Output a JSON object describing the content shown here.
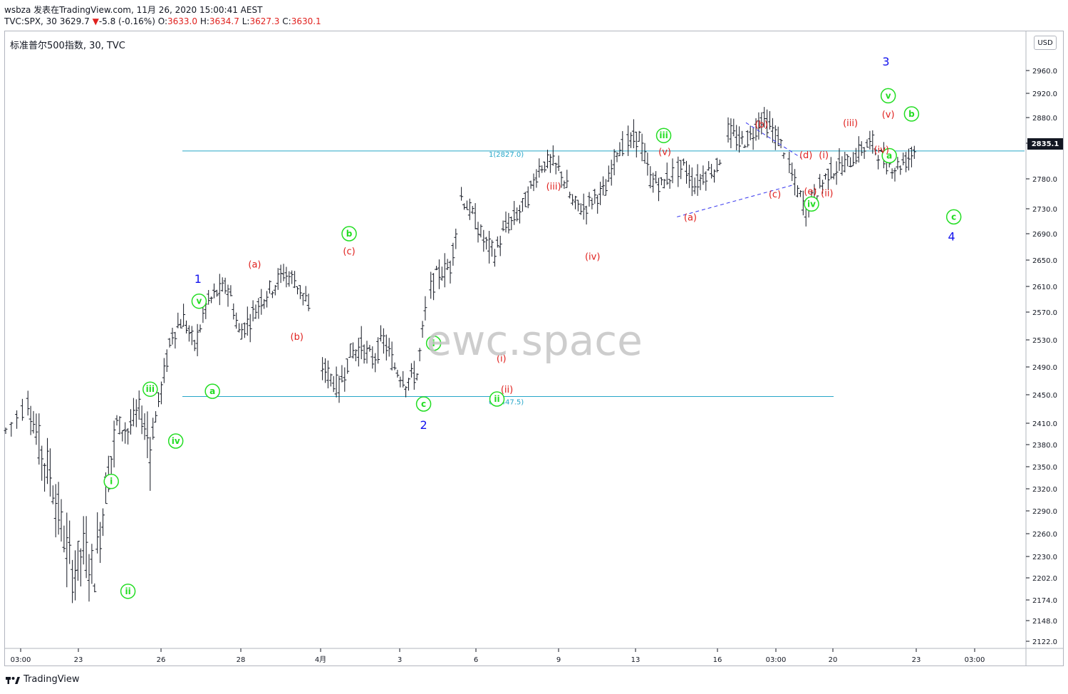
{
  "header": {
    "line1": "wsbza 发表在TradingView.com, 11月 26, 2020 15:00:41 AEST",
    "symbol": "TVC:SPX, 30",
    "last": "3629.7",
    "change_arrow": "▼",
    "change": "-5.8 (-0.16%)",
    "o_label": "O:",
    "o_value": "3633.0",
    "h_label": "H:",
    "h_value": "3634.7",
    "l_label": "L:",
    "l_value": "3627.3",
    "c_label": "C:",
    "c_value": "3630.1"
  },
  "chart_title": "标准普尔500指数, 30, TVC",
  "currency": "USD",
  "last_price_label": "2835.1",
  "watermark": "ewc.space",
  "footer": {
    "brand": "TradingView"
  },
  "colors": {
    "bars": "#131722",
    "wave_green": "#22dd22",
    "wave_red": "#e0211e",
    "wave_blue": "#1111ee",
    "fib_line": "#26a6c8",
    "dashed": "#3333ee"
  },
  "chart_data": {
    "type": "bar",
    "title": "",
    "ylim": [
      2100,
      2990
    ],
    "yticks": [
      2960.0,
      2920.0,
      2880.0,
      2840.0,
      2780.0,
      2730.0,
      2690.0,
      2650.0,
      2610.0,
      2570.0,
      2530.0,
      2490.0,
      2450.0,
      2410.0,
      2380.0,
      2350.0,
      2320.0,
      2290.0,
      2260.0,
      2230.0,
      2202.0,
      2174.0,
      2148.0,
      2122.0
    ],
    "ytick_labels": [
      "2960.0",
      "2920.0",
      "2880.0",
      "2840.0",
      "2780.0",
      "2730.0",
      "2690.0",
      "2650.0",
      "2610.0",
      "2570.0",
      "2530.0",
      "2490.0",
      "2450.0",
      "2410.0",
      "2380.0",
      "2350.0",
      "2320.0",
      "2290.0",
      "2260.0",
      "2230.0",
      "2202.0",
      "2174.0",
      "2148.0",
      "2122.0"
    ],
    "xticks": [
      "03:00",
      "23",
      "26",
      "28",
      "4月",
      "3",
      "6",
      "9",
      "13",
      "16",
      "03:00",
      "20",
      "23",
      "03:00"
    ],
    "fib_levels": [
      {
        "label": "1(2827.0)",
        "value": 2827.0
      },
      {
        "label": "0(2447.5)",
        "value": 2447.5
      }
    ],
    "price_path": [
      {
        "x": 0,
        "y": 2400
      },
      {
        "x": 2,
        "y": 2440
      },
      {
        "x": 3,
        "y": 2380
      },
      {
        "x": 4,
        "y": 2340
      },
      {
        "x": 5,
        "y": 2270
      },
      {
        "x": 6,
        "y": 2210
      },
      {
        "x": 7,
        "y": 2240
      },
      {
        "x": 8,
        "y": 2210
      },
      {
        "x": 9,
        "y": 2320
      },
      {
        "x": 10,
        "y": 2410
      },
      {
        "x": 11,
        "y": 2400
      },
      {
        "x": 12,
        "y": 2430
      },
      {
        "x": 13,
        "y": 2380
      },
      {
        "x": 14,
        "y": 2460
      },
      {
        "x": 15,
        "y": 2540
      },
      {
        "x": 16,
        "y": 2560
      },
      {
        "x": 17,
        "y": 2520
      },
      {
        "x": 18,
        "y": 2580
      },
      {
        "x": 19,
        "y": 2600
      },
      {
        "x": 20,
        "y": 2610
      },
      {
        "x": 21,
        "y": 2540
      },
      {
        "x": 22,
        "y": 2560
      },
      {
        "x": 23,
        "y": 2590
      },
      {
        "x": 24,
        "y": 2610
      },
      {
        "x": 25,
        "y": 2630
      },
      {
        "x": 26,
        "y": 2620
      },
      {
        "x": 27,
        "y": 2590
      },
      {
        "x": 28,
        "y": 2500
      },
      {
        "x": 29,
        "y": 2480
      },
      {
        "x": 30,
        "y": 2460
      },
      {
        "x": 31,
        "y": 2510
      },
      {
        "x": 32,
        "y": 2520
      },
      {
        "x": 33,
        "y": 2500
      },
      {
        "x": 34,
        "y": 2530
      },
      {
        "x": 35,
        "y": 2490
      },
      {
        "x": 36,
        "y": 2470
      },
      {
        "x": 37,
        "y": 2480
      },
      {
        "x": 38,
        "y": 2600
      },
      {
        "x": 39,
        "y": 2630
      },
      {
        "x": 40,
        "y": 2640
      },
      {
        "x": 41,
        "y": 2750
      },
      {
        "x": 42,
        "y": 2720
      },
      {
        "x": 43,
        "y": 2680
      },
      {
        "x": 44,
        "y": 2660
      },
      {
        "x": 45,
        "y": 2700
      },
      {
        "x": 46,
        "y": 2720
      },
      {
        "x": 47,
        "y": 2750
      },
      {
        "x": 48,
        "y": 2800
      },
      {
        "x": 49,
        "y": 2810
      },
      {
        "x": 50,
        "y": 2790
      },
      {
        "x": 51,
        "y": 2740
      },
      {
        "x": 52,
        "y": 2730
      },
      {
        "x": 53,
        "y": 2750
      },
      {
        "x": 54,
        "y": 2760
      },
      {
        "x": 55,
        "y": 2830
      },
      {
        "x": 56,
        "y": 2840
      },
      {
        "x": 57,
        "y": 2850
      },
      {
        "x": 58,
        "y": 2780
      },
      {
        "x": 59,
        "y": 2770
      },
      {
        "x": 60,
        "y": 2790
      },
      {
        "x": 61,
        "y": 2800
      },
      {
        "x": 62,
        "y": 2770
      },
      {
        "x": 63,
        "y": 2790
      },
      {
        "x": 64,
        "y": 2800
      },
      {
        "x": 65,
        "y": 2860
      },
      {
        "x": 66,
        "y": 2840
      },
      {
        "x": 67,
        "y": 2850
      },
      {
        "x": 68,
        "y": 2880
      },
      {
        "x": 69,
        "y": 2860
      },
      {
        "x": 70,
        "y": 2830
      },
      {
        "x": 71,
        "y": 2770
      },
      {
        "x": 72,
        "y": 2730
      },
      {
        "x": 73,
        "y": 2760
      },
      {
        "x": 74,
        "y": 2790
      },
      {
        "x": 75,
        "y": 2800
      },
      {
        "x": 76,
        "y": 2810
      },
      {
        "x": 77,
        "y": 2830
      },
      {
        "x": 78,
        "y": 2840
      },
      {
        "x": 79,
        "y": 2810
      },
      {
        "x": 80,
        "y": 2800
      },
      {
        "x": 81,
        "y": 2810
      },
      {
        "x": 82,
        "y": 2835
      }
    ],
    "annotations": [
      {
        "text": "1",
        "x": 17.3,
        "y": 2622,
        "style": "blue"
      },
      {
        "text": "2",
        "x": 37.6,
        "y": 2408,
        "style": "blue"
      },
      {
        "text": "3",
        "x": 79.2,
        "y": 2976,
        "style": "blue"
      },
      {
        "text": "4",
        "x": 85.1,
        "y": 2686,
        "style": "blue"
      },
      {
        "text": "i",
        "x": 9.5,
        "y": 2330,
        "style": "green-circle"
      },
      {
        "text": "ii",
        "x": 11.0,
        "y": 2185,
        "style": "green-circle"
      },
      {
        "text": "iii",
        "x": 13.0,
        "y": 2458,
        "style": "green-circle"
      },
      {
        "text": "iv",
        "x": 15.3,
        "y": 2385,
        "style": "green-circle"
      },
      {
        "text": "v",
        "x": 17.4,
        "y": 2587,
        "style": "green-circle"
      },
      {
        "text": "a",
        "x": 18.6,
        "y": 2455,
        "style": "green-circle"
      },
      {
        "text": "b",
        "x": 30.9,
        "y": 2690,
        "style": "green-circle"
      },
      {
        "text": "c",
        "x": 37.6,
        "y": 2437,
        "style": "green-circle"
      },
      {
        "text": "i",
        "x": 38.5,
        "y": 2525,
        "style": "green-circle"
      },
      {
        "text": "ii",
        "x": 44.2,
        "y": 2444,
        "style": "green-circle"
      },
      {
        "text": "iii",
        "x": 59.2,
        "y": 2852,
        "style": "green-circle"
      },
      {
        "text": "iv",
        "x": 72.5,
        "y": 2738,
        "style": "green-circle"
      },
      {
        "text": "v",
        "x": 79.4,
        "y": 2916,
        "style": "green-circle"
      },
      {
        "text": "a",
        "x": 79.5,
        "y": 2819,
        "style": "green-circle"
      },
      {
        "text": "b",
        "x": 81.5,
        "y": 2886,
        "style": "green-circle"
      },
      {
        "text": "c",
        "x": 85.3,
        "y": 2717,
        "style": "green-circle"
      },
      {
        "text": "(a)",
        "x": 22.4,
        "y": 2644,
        "style": "red"
      },
      {
        "text": "(b)",
        "x": 26.2,
        "y": 2535,
        "style": "red"
      },
      {
        "text": "(c)",
        "x": 30.9,
        "y": 2664,
        "style": "red"
      },
      {
        "text": "(i)",
        "x": 44.6,
        "y": 2503,
        "style": "red"
      },
      {
        "text": "(ii)",
        "x": 45.1,
        "y": 2458,
        "style": "red"
      },
      {
        "text": "(iii)",
        "x": 49.3,
        "y": 2768,
        "style": "red"
      },
      {
        "text": "(iv)",
        "x": 52.8,
        "y": 2656,
        "style": "red"
      },
      {
        "text": "(v)",
        "x": 59.3,
        "y": 2826,
        "style": "red"
      },
      {
        "text": "(a)",
        "x": 61.6,
        "y": 2717,
        "style": "red"
      },
      {
        "text": "(b)",
        "x": 68.0,
        "y": 2870,
        "style": "red"
      },
      {
        "text": "(c)",
        "x": 69.2,
        "y": 2755,
        "style": "red"
      },
      {
        "text": "(d)",
        "x": 72.0,
        "y": 2821,
        "style": "red"
      },
      {
        "text": "(e)",
        "x": 72.4,
        "y": 2760,
        "style": "red"
      },
      {
        "text": "(i)",
        "x": 73.6,
        "y": 2821,
        "style": "red"
      },
      {
        "text": "(ii)",
        "x": 73.9,
        "y": 2757,
        "style": "red"
      },
      {
        "text": "(iii)",
        "x": 76.0,
        "y": 2872,
        "style": "red"
      },
      {
        "text": "(iv)",
        "x": 78.8,
        "y": 2830,
        "style": "red"
      },
      {
        "text": "(v)",
        "x": 79.4,
        "y": 2886,
        "style": "red"
      }
    ],
    "trendlines": [
      {
        "from": {
          "x": 60.4,
          "y": 2717
        },
        "to": {
          "x": 70.9,
          "y": 2770
        }
      },
      {
        "from": {
          "x": 66.6,
          "y": 2872
        },
        "to": {
          "x": 71.6,
          "y": 2815
        }
      }
    ]
  }
}
